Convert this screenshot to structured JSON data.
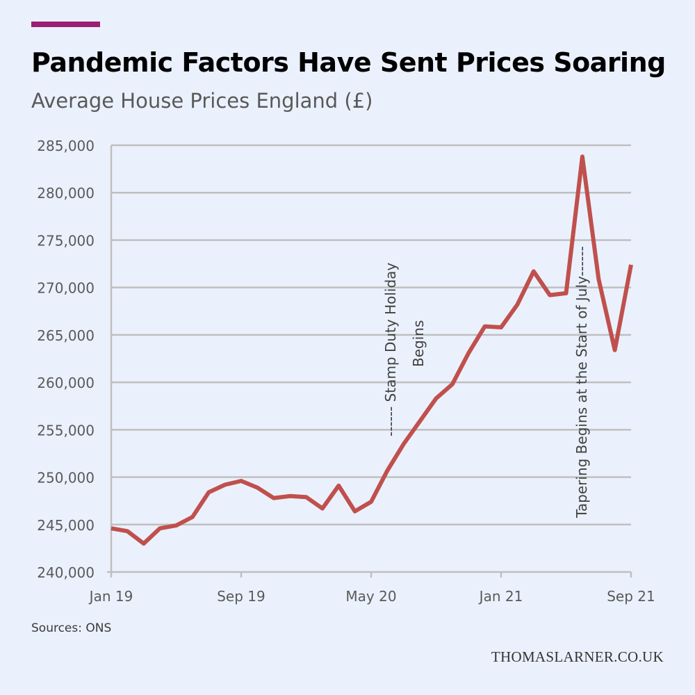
{
  "header": {
    "title": "Pandemic Factors Have Sent Prices Soaring",
    "subtitle": "Average House Prices England (£)"
  },
  "footer": {
    "source": "Sources: ONS",
    "brand": "THOMASLARNER.CO.UK"
  },
  "colors": {
    "accent": "#9b1f74",
    "line": "#c0504d",
    "grid": "#bfbfbf",
    "axis_text": "#595959",
    "annotation_text": "#404040"
  },
  "chart_data": {
    "type": "line",
    "title": "Average House Prices England (£)",
    "xlabel": "",
    "ylabel": "",
    "ylim": [
      240000,
      285000
    ],
    "yticks": [
      240000,
      245000,
      250000,
      255000,
      260000,
      265000,
      270000,
      275000,
      280000,
      285000
    ],
    "ytick_labels": [
      "240,000",
      "245,000",
      "250,000",
      "255,000",
      "260,000",
      "265,000",
      "270,000",
      "275,000",
      "280,000",
      "285,000"
    ],
    "x": [
      "2019-01",
      "2019-02",
      "2019-03",
      "2019-04",
      "2019-05",
      "2019-06",
      "2019-07",
      "2019-08",
      "2019-09",
      "2019-10",
      "2019-11",
      "2019-12",
      "2020-01",
      "2020-02",
      "2020-03",
      "2020-04",
      "2020-05",
      "2020-06",
      "2020-07",
      "2020-08",
      "2020-09",
      "2020-10",
      "2020-11",
      "2020-12",
      "2021-01",
      "2021-02",
      "2021-03",
      "2021-04",
      "2021-05",
      "2021-06",
      "2021-07",
      "2021-08",
      "2021-09"
    ],
    "xticks": [
      "2019-01",
      "2019-09",
      "2020-05",
      "2021-01",
      "2021-09"
    ],
    "xtick_labels": [
      "Jan 19",
      "Sep 19",
      "May 20",
      "Jan 21",
      "Sep 21"
    ],
    "grid": true,
    "legend": "none",
    "series": [
      {
        "values": [
          244600,
          244300,
          243000,
          244600,
          244900,
          245800,
          248400,
          249200,
          249600,
          248900,
          247800,
          248000,
          247900,
          246700,
          249100,
          246400,
          247400,
          250700,
          253500,
          255900,
          258300,
          259800,
          263100,
          265900,
          265800,
          268200,
          271700,
          269200,
          269400,
          283800,
          270900,
          263400,
          272400
        ]
      }
    ],
    "annotations": [
      {
        "text_lines": [
          "------ Stamp Duty Holiday",
          "Begins"
        ],
        "x": "2020-07"
      },
      {
        "text_lines": [
          "Tapering Begins at the Start of July------"
        ],
        "x": "2021-06"
      }
    ]
  }
}
